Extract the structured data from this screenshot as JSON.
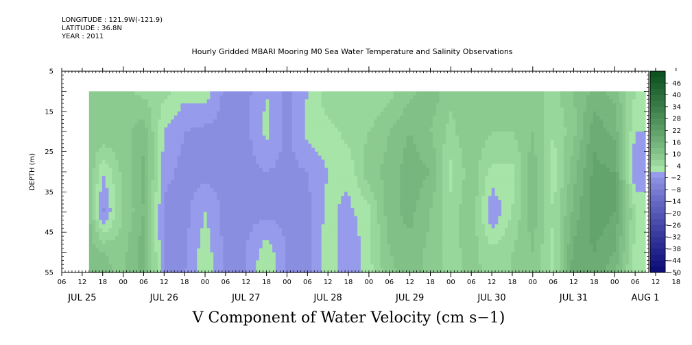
{
  "meta": {
    "longitude": "LONGITUDE : 121.9W(-121.9)",
    "latitude": "LATITUDE : 36.8N",
    "year": "YEAR : 2011"
  },
  "title": "Hourly Gridded MBARI Mooring M0 Sea Water Temperature and Salinity Observations",
  "variable_title": "V Component of Water Velocity (cm s−1)",
  "chart_data": {
    "type": "heatmap",
    "title": "Hourly Gridded MBARI Mooring M0 Sea Water Temperature and Salinity Observations",
    "xlabel": "",
    "ylabel": "DEPTH (m)",
    "ylim": [
      55,
      5
    ],
    "y_tick_labels": [
      "5",
      "15",
      "25",
      "35",
      "45",
      "55"
    ],
    "x_hour_labels": [
      "06",
      "12",
      "18",
      "00",
      "06",
      "12",
      "18",
      "00",
      "06",
      "12",
      "18",
      "00",
      "06",
      "12",
      "18",
      "00",
      "06",
      "12",
      "18",
      "00",
      "06",
      "12",
      "18",
      "00",
      "06",
      "12",
      "18",
      "00",
      "06",
      "12",
      "18",
      "00",
      "06"
    ],
    "x_day_labels": [
      "JUL 25",
      "JUL 26",
      "JUL 27",
      "JUL 28",
      "JUL 29",
      "JUL 30",
      "JUL 31",
      "AUG 1"
    ],
    "xlim": [
      "2011-07-25 06:00",
      "2011-08-01 10:00"
    ],
    "data_start": "2011-07-25 14:00",
    "data_end": "2011-08-01 09:00",
    "data_depth_range": [
      10,
      55
    ],
    "colorbar": {
      "labels": [
        "46",
        "40",
        "34",
        "28",
        "22",
        "16",
        "10",
        "4",
        "−2",
        "−8",
        "−14",
        "−20",
        "−26",
        "−32",
        "−38",
        "−44",
        "−50"
      ],
      "min": -50,
      "max": 52,
      "step": 3
    },
    "v_profile": {
      "times": [
        "2011-07-25 14:00",
        "2011-07-25 18:00",
        "2011-07-26 00:00",
        "2011-07-26 06:00",
        "2011-07-26 12:00",
        "2011-07-26 18:00",
        "2011-07-27 00:00",
        "2011-07-27 06:00",
        "2011-07-27 12:00",
        "2011-07-27 18:00",
        "2011-07-28 00:00",
        "2011-07-28 06:00",
        "2011-07-28 12:00",
        "2011-07-28 18:00",
        "2011-07-29 00:00",
        "2011-07-29 06:00",
        "2011-07-29 12:00",
        "2011-07-29 18:00",
        "2011-07-30 00:00",
        "2011-07-30 06:00",
        "2011-07-30 12:00",
        "2011-07-30 18:00",
        "2011-07-31 00:00",
        "2011-07-31 06:00",
        "2011-07-31 12:00",
        "2011-07-31 18:00",
        "2011-08-01 00:00",
        "2011-08-01 06:00"
      ],
      "depths": [
        10,
        20,
        30,
        40,
        50,
        55
      ],
      "values": [
        [
          8,
          9,
          10,
          11,
          12,
          12
        ],
        [
          9,
          10,
          1,
          -3,
          10,
          11
        ],
        [
          8,
          9,
          8,
          7,
          9,
          9
        ],
        [
          6,
          12,
          14,
          13,
          15,
          15
        ],
        [
          5,
          1,
          -1,
          -3,
          -3,
          -3
        ],
        [
          2,
          -2,
          -3,
          -3,
          -3,
          -2
        ],
        [
          3,
          -3,
          -3,
          1,
          3,
          3
        ],
        [
          -3,
          -3,
          -3,
          -3,
          -3,
          -3
        ],
        [
          -3,
          -3,
          -3,
          -3,
          -2,
          -2
        ],
        [
          1,
          2,
          -2,
          -3,
          3,
          4
        ],
        [
          -3,
          -3,
          -3,
          -3,
          -2,
          -3
        ],
        [
          1,
          2,
          -2,
          -3,
          -3,
          -3
        ],
        [
          6,
          3,
          1,
          2,
          3,
          3
        ],
        [
          7,
          5,
          2,
          0,
          -2,
          -2
        ],
        [
          4,
          7,
          9,
          3,
          3,
          3
        ],
        [
          6,
          10,
          11,
          12,
          10,
          9
        ],
        [
          9,
          13,
          15,
          14,
          12,
          12
        ],
        [
          12,
          10,
          13,
          10,
          9,
          9
        ],
        [
          8,
          6,
          3,
          5,
          6,
          6
        ],
        [
          8,
          10,
          9,
          10,
          8,
          8
        ],
        [
          9,
          7,
          3,
          -2,
          5,
          6
        ],
        [
          8,
          7,
          3,
          4,
          7,
          7
        ],
        [
          8,
          10,
          12,
          12,
          10,
          10
        ],
        [
          6,
          4,
          2,
          4,
          3,
          3
        ],
        [
          10,
          9,
          12,
          14,
          17,
          18
        ],
        [
          14,
          18,
          20,
          21,
          19,
          18
        ],
        [
          12,
          15,
          19,
          19,
          16,
          14
        ],
        [
          4,
          1,
          -2,
          4,
          3,
          2
        ]
      ]
    }
  }
}
